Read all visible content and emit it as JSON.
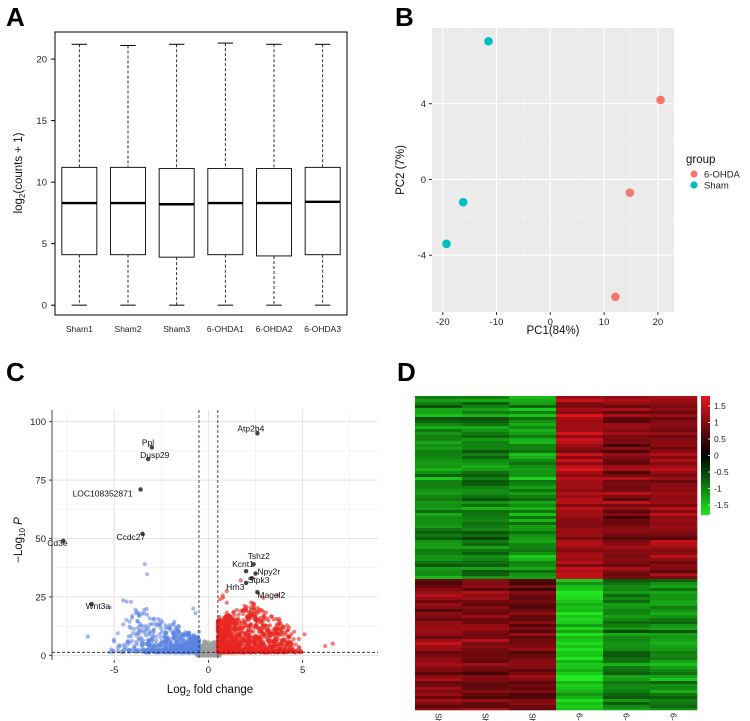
{
  "panels": {
    "A": "A",
    "B": "B",
    "C": "C",
    "D": "D"
  },
  "chart_data": [
    {
      "panel": "A",
      "type": "box",
      "ylabel": "log2(counts + 1)",
      "ylabel_parts": {
        "pre": "log",
        "sub": "2",
        "post": "(counts + 1)"
      },
      "ylim": [
        -0.8,
        22.2
      ],
      "yticks": [
        0,
        5,
        10,
        15,
        20
      ],
      "categories": [
        "Sham1",
        "Sham2",
        "Sham3",
        "6-OHDA1",
        "6-OHDA2",
        "6-OHDA3"
      ],
      "boxes": [
        {
          "min": 0,
          "q1": 4.1,
          "median": 8.3,
          "q3": 11.2,
          "max": 21.2
        },
        {
          "min": 0,
          "q1": 4.1,
          "median": 8.3,
          "q3": 11.2,
          "max": 21.1
        },
        {
          "min": 0,
          "q1": 3.9,
          "median": 8.2,
          "q3": 11.1,
          "max": 21.2
        },
        {
          "min": 0,
          "q1": 4.1,
          "median": 8.3,
          "q3": 11.1,
          "max": 21.3
        },
        {
          "min": 0,
          "q1": 4.0,
          "median": 8.3,
          "q3": 11.1,
          "max": 21.2
        },
        {
          "min": 0,
          "q1": 4.1,
          "median": 8.4,
          "q3": 11.2,
          "max": 21.2
        }
      ]
    },
    {
      "panel": "B",
      "type": "scatter",
      "xlabel": "PC1(84%)",
      "ylabel": "PC2 (7%)",
      "xlim": [
        -22,
        23
      ],
      "ylim": [
        -7.0,
        8.0
      ],
      "xticks": [
        -20,
        -10,
        0,
        10,
        20
      ],
      "yticks": [
        -4,
        0,
        4
      ],
      "legend_title": "group",
      "series": [
        {
          "name": "6-OHDA",
          "color": "#F8766D",
          "points": [
            [
              20.5,
              4.2
            ],
            [
              14.8,
              -0.7
            ],
            [
              12.1,
              -6.2
            ]
          ]
        },
        {
          "name": "Sham",
          "color": "#00BFC4",
          "points": [
            [
              -11.5,
              7.3
            ],
            [
              -16.2,
              -1.2
            ],
            [
              -19.3,
              -3.4
            ]
          ]
        }
      ]
    },
    {
      "panel": "C",
      "type": "scatter",
      "subtype": "volcano",
      "xlabel": "Log2 fold change",
      "xlabel_parts": {
        "pre": "Log",
        "sub": "2",
        "post": " fold change"
      },
      "ylabel": "-Log10 P",
      "ylabel_parts": {
        "pre": "−Log",
        "sub": "10",
        "post": " P"
      },
      "xlim": [
        -8.3,
        9.0
      ],
      "ylim": [
        -2,
        105
      ],
      "xticks": [
        -5,
        0,
        5
      ],
      "yticks": [
        0,
        25,
        50,
        75,
        100
      ],
      "fc_cutoff": 0.5,
      "p_cutoff_y": 1.3,
      "colors": {
        "up": "#E8271F",
        "down": "#5B84E0",
        "ns": "#9E9E9E",
        "labeled": "#444444"
      },
      "labeled_genes": [
        {
          "label": "Atp2b4",
          "x": 2.6,
          "y": 95
        },
        {
          "label": "Ppl",
          "x": -3.0,
          "y": 89
        },
        {
          "label": "Dusp29",
          "x": -3.2,
          "y": 84
        },
        {
          "label": "LOC108352871",
          "x": -3.6,
          "y": 71
        },
        {
          "label": "Ccdc27",
          "x": -3.5,
          "y": 52
        },
        {
          "label": "Cd3e",
          "x": -7.7,
          "y": 49
        },
        {
          "label": "Tshz2",
          "x": 2.4,
          "y": 39
        },
        {
          "label": "Kcnt1",
          "x": 2.0,
          "y": 36
        },
        {
          "label": "Npy2r",
          "x": 2.5,
          "y": 35
        },
        {
          "label": "Stpk3",
          "x": 2.3,
          "y": 33
        },
        {
          "label": "Hrh3",
          "x": 2.0,
          "y": 31
        },
        {
          "label": "Magel2",
          "x": 2.6,
          "y": 27
        },
        {
          "label": "Wnt3a",
          "x": -6.2,
          "y": 22
        }
      ]
    },
    {
      "panel": "D",
      "type": "heatmap",
      "columns": [
        "Sham1",
        "Sham2",
        "Sham3",
        "6-OHDA1",
        "6-OHDA2",
        "6-OHDA3"
      ],
      "cluster_split_fraction": 0.58,
      "colorbar": {
        "min": -1.8,
        "max": 1.8,
        "ticks": [
          1.5,
          1,
          0.5,
          0,
          -0.5,
          -1,
          -1.5
        ],
        "tick_labels": [
          "1.5",
          "1",
          "0.5",
          "0",
          "-0.5",
          "-1",
          "-1.5"
        ]
      },
      "cluster_means": [
        [
          -1.1,
          -1.0,
          -1.2,
          1.3,
          1.0,
          1.1
        ],
        [
          1.1,
          1.0,
          0.9,
          -1.5,
          -1.0,
          -1.1
        ]
      ]
    }
  ]
}
